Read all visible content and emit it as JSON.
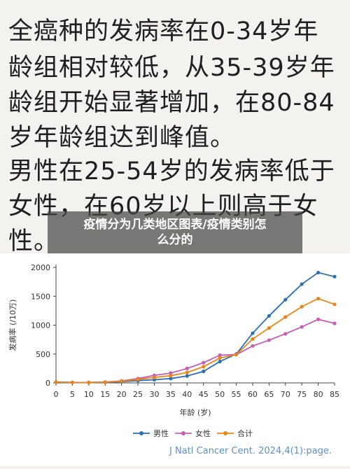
{
  "notes": [
    "全癌种的发病率在0-34岁年",
    "龄组相对较低，从35-39岁年",
    "龄组开始显著增加，在80-84",
    "岁年龄组达到峰值。",
    "男性在25-54岁的发病率低于",
    "女性，在60岁以上则高于女",
    "性。"
  ],
  "banner": {
    "line1": "疫情分为几类地区图表/疫情类别怎",
    "line2": "么分的"
  },
  "chart_data": {
    "type": "line",
    "xlabel": "年龄 (岁)",
    "ylabel": "发病率 (/10万)",
    "x": [
      0,
      5,
      10,
      15,
      20,
      25,
      30,
      35,
      40,
      45,
      50,
      55,
      60,
      65,
      70,
      75,
      80,
      85
    ],
    "xticks": [
      "0",
      "5",
      "10",
      "15",
      "20",
      "25",
      "30",
      "35",
      "40",
      "45",
      "50",
      "55",
      "60",
      "65",
      "70",
      "75",
      "80",
      "85"
    ],
    "yticks": [
      "0",
      "500",
      "1000",
      "1500",
      "2000"
    ],
    "ylim": [
      0,
      2000
    ],
    "xlim": [
      0,
      85
    ],
    "grid": false,
    "legend_position": "bottom",
    "series": [
      {
        "name": "男性",
        "color": "#2e6fb0",
        "values": [
          15,
          8,
          8,
          10,
          20,
          40,
          55,
          75,
          120,
          200,
          370,
          500,
          860,
          1160,
          1440,
          1710,
          1910,
          1840
        ]
      },
      {
        "name": "女性",
        "color": "#c35fb5",
        "values": [
          15,
          8,
          8,
          15,
          35,
          75,
          130,
          170,
          250,
          350,
          480,
          490,
          640,
          740,
          850,
          970,
          1100,
          1030
        ]
      },
      {
        "name": "合计",
        "color": "#e8861c",
        "values": [
          15,
          8,
          8,
          12,
          28,
          60,
          95,
          125,
          180,
          280,
          430,
          490,
          760,
          950,
          1140,
          1320,
          1460,
          1360
        ]
      }
    ],
    "source": "J Natl Cancer Cent. 2024,4(1):page."
  }
}
